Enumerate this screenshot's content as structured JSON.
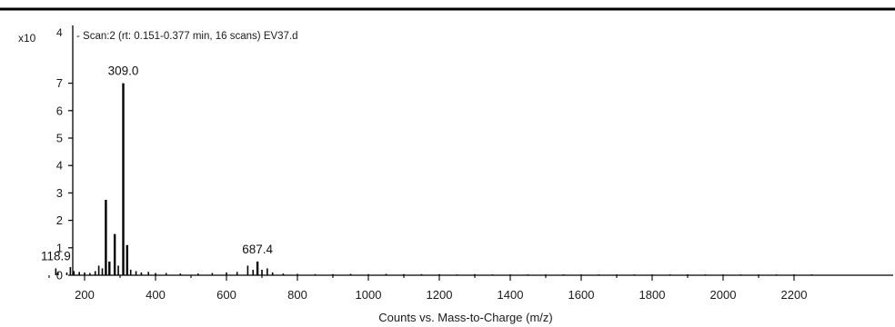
{
  "chart_data": {
    "type": "bar",
    "title": "- Scan:2 (rt: 0.151-0.377 min, 16 scans) EV37.d",
    "xlabel": "Counts vs. Mass-to-Charge (m/z)",
    "ylabel": "",
    "y_multiplier_base": "x10",
    "y_multiplier_exponent": "4",
    "xlim": [
      0,
      2300
    ],
    "ylim": [
      0,
      8
    ],
    "x_ticks": [
      200,
      400,
      600,
      800,
      1000,
      1200,
      1400,
      1600,
      1800,
      2000,
      2200
    ],
    "y_ticks": [
      0,
      1,
      2,
      3,
      4,
      5,
      6,
      7
    ],
    "grid": false,
    "peaks": [
      {
        "x": 118.9,
        "y": 0.25,
        "label": "118.9"
      },
      {
        "x": 125,
        "y": 0.12
      },
      {
        "x": 150,
        "y": 0.1
      },
      {
        "x": 160,
        "y": 0.3
      },
      {
        "x": 170,
        "y": 0.15
      },
      {
        "x": 185,
        "y": 0.12
      },
      {
        "x": 200,
        "y": 0.1
      },
      {
        "x": 215,
        "y": 0.08
      },
      {
        "x": 230,
        "y": 0.15
      },
      {
        "x": 240,
        "y": 0.35
      },
      {
        "x": 250,
        "y": 0.25
      },
      {
        "x": 260,
        "y": 2.75
      },
      {
        "x": 270,
        "y": 0.5
      },
      {
        "x": 285,
        "y": 1.5
      },
      {
        "x": 295,
        "y": 0.35
      },
      {
        "x": 309.0,
        "y": 7.0,
        "label": "309.0"
      },
      {
        "x": 320,
        "y": 1.1
      },
      {
        "x": 330,
        "y": 0.2
      },
      {
        "x": 345,
        "y": 0.15
      },
      {
        "x": 360,
        "y": 0.1
      },
      {
        "x": 380,
        "y": 0.12
      },
      {
        "x": 400,
        "y": 0.08
      },
      {
        "x": 430,
        "y": 0.08
      },
      {
        "x": 470,
        "y": 0.06
      },
      {
        "x": 520,
        "y": 0.06
      },
      {
        "x": 560,
        "y": 0.08
      },
      {
        "x": 600,
        "y": 0.1
      },
      {
        "x": 630,
        "y": 0.12
      },
      {
        "x": 660,
        "y": 0.35
      },
      {
        "x": 675,
        "y": 0.2
      },
      {
        "x": 687.4,
        "y": 0.5,
        "label": "687.4"
      },
      {
        "x": 700,
        "y": 0.2
      },
      {
        "x": 715,
        "y": 0.25
      },
      {
        "x": 730,
        "y": 0.1
      },
      {
        "x": 760,
        "y": 0.06
      },
      {
        "x": 800,
        "y": 0.05
      },
      {
        "x": 850,
        "y": 0.04
      },
      {
        "x": 900,
        "y": 0.04
      },
      {
        "x": 950,
        "y": 0.05
      },
      {
        "x": 1000,
        "y": 0.04
      },
      {
        "x": 1050,
        "y": 0.05
      },
      {
        "x": 1100,
        "y": 0.04
      },
      {
        "x": 1150,
        "y": 0.04
      },
      {
        "x": 1200,
        "y": 0.04
      },
      {
        "x": 1250,
        "y": 0.03
      },
      {
        "x": 1300,
        "y": 0.04
      },
      {
        "x": 1350,
        "y": 0.03
      },
      {
        "x": 1400,
        "y": 0.03
      },
      {
        "x": 1450,
        "y": 0.03
      },
      {
        "x": 1500,
        "y": 0.03
      },
      {
        "x": 1550,
        "y": 0.03
      },
      {
        "x": 1600,
        "y": 0.03
      },
      {
        "x": 1650,
        "y": 0.03
      },
      {
        "x": 1700,
        "y": 0.03
      },
      {
        "x": 1750,
        "y": 0.03
      },
      {
        "x": 1800,
        "y": 0.03
      },
      {
        "x": 1850,
        "y": 0.03
      },
      {
        "x": 1900,
        "y": 0.03
      },
      {
        "x": 1950,
        "y": 0.03
      },
      {
        "x": 2000,
        "y": 0.03
      },
      {
        "x": 2050,
        "y": 0.03
      },
      {
        "x": 2100,
        "y": 0.03
      },
      {
        "x": 2150,
        "y": 0.03
      },
      {
        "x": 2200,
        "y": 0.03
      },
      {
        "x": 2250,
        "y": 0.03
      }
    ],
    "colors": {
      "bar": "#000000",
      "axis": "#000000",
      "text": "#1a1a1a"
    }
  }
}
